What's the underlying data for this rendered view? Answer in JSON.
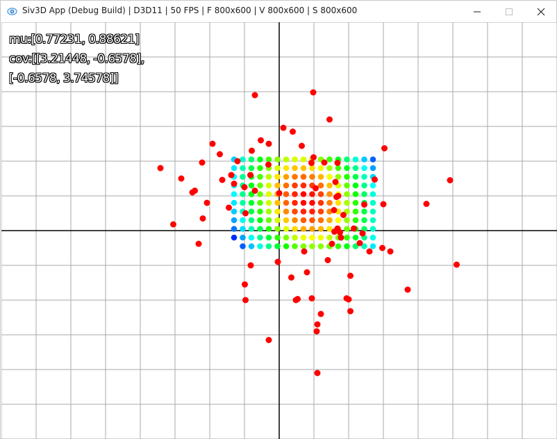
{
  "window": {
    "title": "Siv3D App (Debug Build) | D3D11 | 50 FPS | F 800x600 | V 800x600 | S 800x600",
    "app_icon": "siv3d-eye-icon",
    "controls": [
      "minimize-icon",
      "maximize-icon",
      "close-icon"
    ]
  },
  "overlay": {
    "mu_line": "mu:[0.77231, 0.88621]",
    "cov_line1": "cov:[[3.21448, -0.6578],",
    "cov_line2": "[-0.6578, 3.74578]]"
  },
  "colors": {
    "grid": "#aaaaaa",
    "axis": "#000000",
    "sample": "#ff0000",
    "density_low": "#0000ff",
    "density_high": "#ff0000"
  },
  "chart_data": {
    "type": "scatter",
    "grid": true,
    "samples": [
      [
        -0.7,
        3.9
      ],
      [
        0.98,
        3.98
      ],
      [
        1.45,
        3.2
      ],
      [
        0.12,
        2.96
      ],
      [
        0.39,
        2.85
      ],
      [
        -1.92,
        2.5
      ],
      [
        -0.53,
        2.6
      ],
      [
        -0.79,
        2.3
      ],
      [
        -0.3,
        2.5
      ],
      [
        3.03,
        2.37
      ],
      [
        0.65,
        2.44
      ],
      [
        0.99,
        2.11
      ],
      [
        -1.71,
        2.2
      ],
      [
        -3.42,
        1.8
      ],
      [
        -2.22,
        1.96
      ],
      [
        -0.31,
        1.9
      ],
      [
        0.93,
        1.95
      ],
      [
        1.68,
        1.95
      ],
      [
        -1.38,
        1.6
      ],
      [
        -0.83,
        1.6
      ],
      [
        1.3,
        1.96
      ],
      [
        1.62,
        1.4
      ],
      [
        -1.0,
        1.25
      ],
      [
        -2.82,
        1.5
      ],
      [
        4.92,
        1.45
      ],
      [
        -2.5,
        1.1
      ],
      [
        -2.43,
        1.15
      ],
      [
        1.05,
        1.22
      ],
      [
        1.7,
        1.0
      ],
      [
        -1.64,
        1.46
      ],
      [
        1.65,
        0.97
      ],
      [
        -1.3,
        1.35
      ],
      [
        2.75,
        1.47
      ],
      [
        -2.08,
        0.8
      ],
      [
        -1.45,
        0.66
      ],
      [
        3.0,
        0.76
      ],
      [
        2.45,
        0.75
      ],
      [
        4.24,
        0.77
      ],
      [
        1.85,
        0.45
      ],
      [
        1.58,
        0.59
      ],
      [
        -2.2,
        0.35
      ],
      [
        -3.05,
        0.18
      ],
      [
        -0.97,
        0.5
      ],
      [
        1.59,
        -0.03
      ],
      [
        2.15,
        0.06
      ],
      [
        2.4,
        -0.08
      ],
      [
        1.68,
        0.06
      ],
      [
        1.75,
        -0.05
      ],
      [
        1.78,
        -0.2
      ],
      [
        2.32,
        -0.36
      ],
      [
        -2.32,
        -0.38
      ],
      [
        2.6,
        -0.6
      ],
      [
        3.2,
        -0.6
      ],
      [
        2.97,
        -0.5
      ],
      [
        1.52,
        -0.38
      ],
      [
        0.72,
        -0.6
      ],
      [
        -0.82,
        -1.0
      ],
      [
        -0.04,
        -0.9
      ],
      [
        1.4,
        -0.85
      ],
      [
        0.8,
        -1.2
      ],
      [
        2.05,
        -1.3
      ],
      [
        0.35,
        -1.35
      ],
      [
        -0.99,
        -1.55
      ],
      [
        -0.97,
        -2.0
      ],
      [
        3.7,
        -1.7
      ],
      [
        0.94,
        -1.95
      ],
      [
        1.94,
        -1.95
      ],
      [
        2.05,
        -2.32
      ],
      [
        0.48,
        -2.0
      ],
      [
        0.53,
        -1.97
      ],
      [
        1.2,
        -2.4
      ],
      [
        1.1,
        -2.7
      ],
      [
        1.08,
        -2.9
      ],
      [
        -0.3,
        -3.15
      ],
      [
        1.1,
        -4.1
      ],
      [
        5.11,
        -0.98
      ],
      [
        2.0,
        -1.98
      ],
      [
        -1.2,
        2.0
      ],
      [
        0.0,
        1.08
      ],
      [
        -0.7,
        1.15
      ]
    ],
    "density_grid": {
      "center": [
        0.77231,
        0.88621
      ],
      "step": 0.25,
      "cov": [
        [
          3.21448,
          -0.6578
        ],
        [
          -0.6578,
          3.74578
        ]
      ]
    },
    "x_range": [
      -8,
      8
    ],
    "y_range": [
      -6,
      6
    ]
  }
}
